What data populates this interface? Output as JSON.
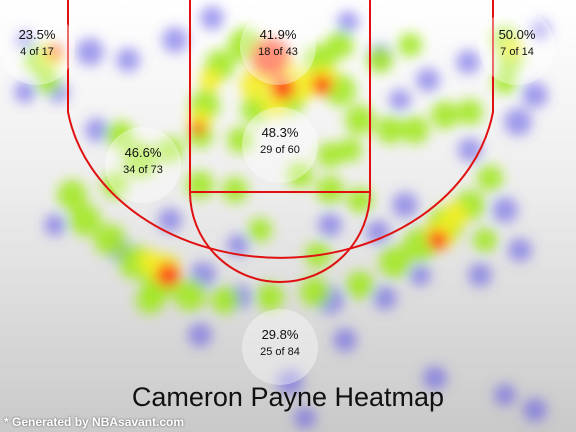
{
  "chart_data": {
    "type": "heatmap",
    "title": "Cameron Payne Heatmap",
    "credit": "* Generated by NBAsavant.com",
    "zones": [
      {
        "name": "left-corner-three",
        "pct": "23.5%",
        "made_attempts": "4 of 17"
      },
      {
        "name": "right-corner-three",
        "pct": "50.0%",
        "made_attempts": "7 of 14"
      },
      {
        "name": "paint-restricted",
        "pct": "41.9%",
        "made_attempts": "18 of 43"
      },
      {
        "name": "left-midrange",
        "pct": "46.6%",
        "made_attempts": "34 of 73"
      },
      {
        "name": "paint-non-restricted",
        "pct": "48.3%",
        "made_attempts": "29 of 60"
      },
      {
        "name": "above-break-three",
        "pct": "29.8%",
        "made_attempts": "25 of 84"
      }
    ],
    "colors": {
      "court_lines": "#e01010",
      "background_top": "#ffffff",
      "background_bottom": "#c9c9c9",
      "heat_low": "#5a50e6",
      "heat_mid": "#9fe81a",
      "heat_high": "#ff3a1a"
    }
  }
}
